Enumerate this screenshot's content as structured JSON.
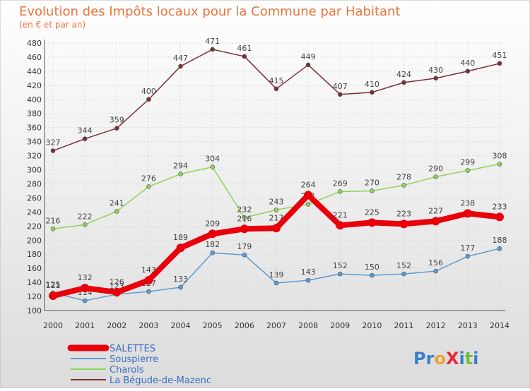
{
  "chart_data": {
    "type": "line",
    "title": "Evolution des Impôts locaux pour la Commune par Habitant",
    "subtitle": "(en € et par an)",
    "x": [
      "2000",
      "2001",
      "2002",
      "2003",
      "2004",
      "2005",
      "2006",
      "2007",
      "2008",
      "2009",
      "2010",
      "2011",
      "2012",
      "2013",
      "2014"
    ],
    "ylim": [
      100,
      480
    ],
    "yticks": [
      100,
      120,
      140,
      160,
      180,
      200,
      220,
      240,
      260,
      280,
      300,
      320,
      340,
      360,
      380,
      400,
      420,
      440,
      460,
      480
    ],
    "grid": true,
    "legend_position": "bottom-left",
    "series": [
      {
        "name": "SALETTES",
        "color": "#e8000b",
        "values": [
          121,
          132,
          126,
          143,
          189,
          209,
          216,
          217,
          264,
          221,
          225,
          223,
          227,
          238,
          233
        ]
      },
      {
        "name": "Souspierre",
        "color": "#5b9bd5",
        "values": [
          125,
          114,
          123,
          127,
          133,
          182,
          179,
          139,
          143,
          152,
          150,
          152,
          156,
          177,
          188
        ]
      },
      {
        "name": "Charols",
        "color": "#8fd35a",
        "values": [
          216,
          222,
          241,
          276,
          294,
          304,
          232,
          243,
          251,
          269,
          270,
          278,
          290,
          299,
          308
        ]
      },
      {
        "name": "La Bégude-de-Mazenc",
        "color": "#7a2e36",
        "values": [
          327,
          344,
          359,
          400,
          447,
          471,
          461,
          415,
          449,
          407,
          410,
          424,
          430,
          440,
          451
        ]
      }
    ]
  },
  "brand": {
    "logo_text": "ProXiti"
  }
}
